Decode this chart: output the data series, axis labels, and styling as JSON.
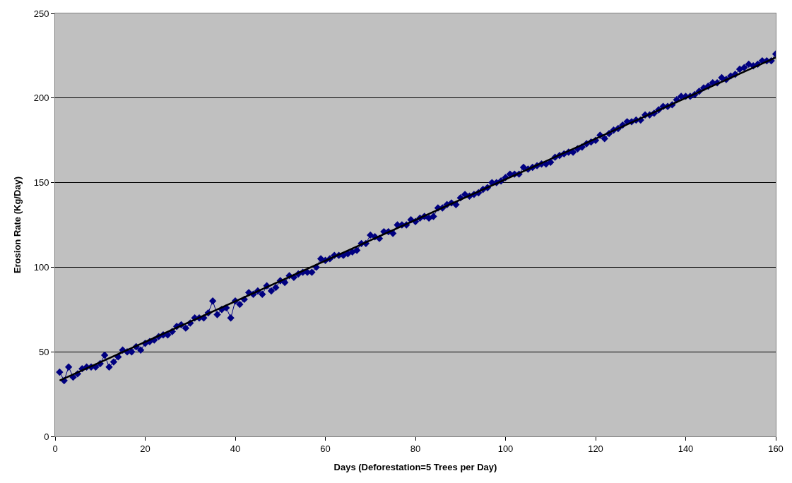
{
  "chart_data": {
    "type": "line",
    "xlabel": "Days (Deforestation=5 Trees per Day)",
    "ylabel": "Erosion Rate (Kg/Day)",
    "xlim": [
      0,
      160
    ],
    "xticks": [
      0,
      20,
      40,
      60,
      80,
      100,
      120,
      140,
      160
    ],
    "ylim": [
      0,
      250
    ],
    "yticks": [
      0,
      50,
      100,
      150,
      200,
      250
    ],
    "grid": "y",
    "marker": "diamond",
    "line_style": "solid",
    "series": [
      {
        "color": "#000080",
        "x": [
          1,
          2,
          3,
          4,
          5,
          6,
          7,
          8,
          9,
          10,
          11,
          12,
          13,
          14,
          15,
          16,
          17,
          18,
          19,
          20,
          21,
          22,
          23,
          24,
          25,
          26,
          27,
          28,
          29,
          30,
          31,
          32,
          33,
          34,
          35,
          36,
          37,
          38,
          39,
          40,
          41,
          42,
          43,
          44,
          45,
          46,
          47,
          48,
          49,
          50,
          51,
          52,
          53,
          54,
          55,
          56,
          57,
          58,
          59,
          60,
          61,
          62,
          63,
          64,
          65,
          66,
          67,
          68,
          69,
          70,
          71,
          72,
          73,
          74,
          75,
          76,
          77,
          78,
          79,
          80,
          81,
          82,
          83,
          84,
          85,
          86,
          87,
          88,
          89,
          90,
          91,
          92,
          93,
          94,
          95,
          96,
          97,
          98,
          99,
          100,
          101,
          102,
          103,
          104,
          105,
          106,
          107,
          108,
          109,
          110,
          111,
          112,
          113,
          114,
          115,
          116,
          117,
          118,
          119,
          120,
          121,
          122,
          123,
          124,
          125,
          126,
          127,
          128,
          129,
          130,
          131,
          132,
          133,
          134,
          135,
          136,
          137,
          138,
          139,
          140,
          141,
          142,
          143,
          144,
          145,
          146,
          147,
          148,
          149,
          150,
          151,
          152,
          153,
          154,
          155,
          156,
          157,
          158,
          159,
          160
        ],
        "values": [
          38,
          33,
          41,
          35,
          37,
          40,
          41,
          41,
          41,
          43,
          48,
          41,
          44,
          47,
          51,
          50,
          50,
          53,
          51,
          55,
          56,
          57,
          59,
          60,
          60,
          62,
          65,
          66,
          64,
          67,
          70,
          70,
          70,
          73,
          80,
          72,
          75,
          76,
          70,
          80,
          78,
          81,
          85,
          84,
          86,
          84,
          89,
          86,
          88,
          92,
          91,
          95,
          94,
          96,
          97,
          97,
          97,
          100,
          105,
          104,
          105,
          107,
          107,
          107,
          108,
          109,
          110,
          114,
          114,
          119,
          118,
          117,
          121,
          121,
          120,
          125,
          125,
          125,
          128,
          127,
          129,
          130,
          129,
          130,
          135,
          135,
          137,
          138,
          137,
          141,
          143,
          142,
          143,
          144,
          146,
          147,
          150,
          150,
          151,
          153,
          155,
          155,
          155,
          159,
          158,
          159,
          160,
          161,
          161,
          162,
          165,
          166,
          167,
          168,
          168,
          170,
          171,
          173,
          174,
          175,
          178,
          176,
          179,
          181,
          182,
          184,
          186,
          186,
          187,
          187,
          190,
          190,
          191,
          193,
          195,
          195,
          196,
          199,
          201,
          201,
          201,
          202,
          204,
          206,
          207,
          209,
          209,
          212,
          211,
          213,
          214,
          217,
          218,
          220,
          219,
          220,
          222,
          222,
          222,
          226
        ]
      },
      {
        "color": "#000000",
        "marker": "none",
        "x": [
          1,
          160
        ],
        "values": [
          33,
          224
        ]
      }
    ]
  }
}
